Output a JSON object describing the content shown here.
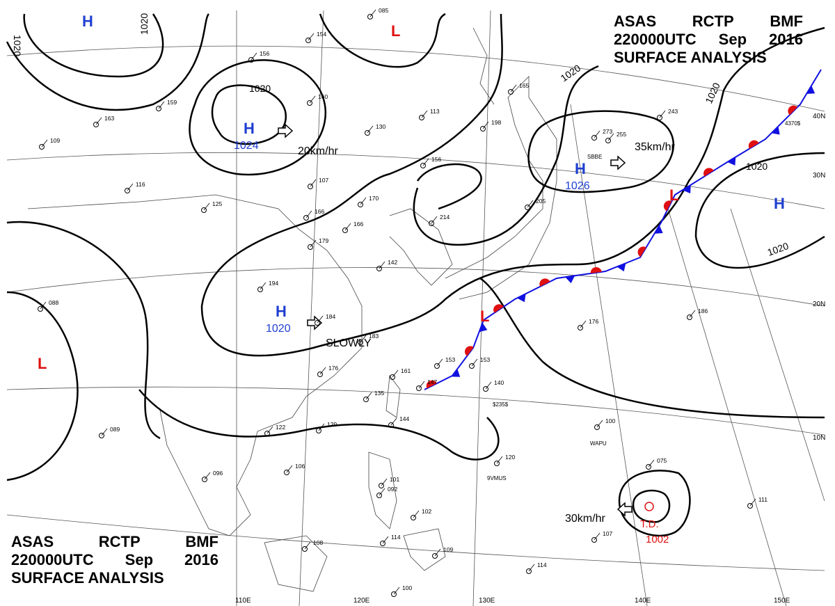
{
  "header_top": {
    "line1": [
      "ASAS",
      "RCTP",
      "BMF"
    ],
    "line2": [
      "220000UTC",
      "Sep",
      "2016"
    ],
    "line3": "SURFACE ANALYSIS"
  },
  "header_bottom": {
    "line1": [
      "ASAS",
      "RCTP",
      "BMF"
    ],
    "line2": [
      "220000UTC",
      "Sep",
      "2016"
    ],
    "line3": "SURFACE ANALYSIS"
  },
  "lat_labels": [
    "40N",
    "30N",
    "20N",
    "10N"
  ],
  "lon_labels": [
    "110E",
    "120E",
    "130E",
    "140E",
    "150E"
  ],
  "isobar_label": "1020",
  "pressure_centers": [
    {
      "type": "H",
      "value": "1024"
    },
    {
      "type": "H",
      "value": "1026"
    },
    {
      "type": "H",
      "value": "1020"
    },
    {
      "type": "H",
      "value": ""
    },
    {
      "type": "H",
      "value": ""
    },
    {
      "type": "L",
      "value": ""
    },
    {
      "type": "L",
      "value": ""
    },
    {
      "type": "L",
      "value": ""
    },
    {
      "type": "L",
      "value": ""
    }
  ],
  "movements": [
    "20km/hr",
    "35km/hr",
    "SLOWLY",
    "30km/hr"
  ],
  "tropical_depression": {
    "label": "T.D.",
    "pressure": "1002"
  },
  "colors": {
    "high": "#1f3fd0",
    "low": "#e01010",
    "cold_front": "#1010e0",
    "warm_front": "#e01010",
    "isobar": "#000000"
  },
  "stations": [
    "154",
    "156",
    "160",
    "130",
    "113",
    "159",
    "109",
    "163",
    "116",
    "125",
    "107",
    "166",
    "166",
    "170",
    "179",
    "194",
    "184",
    "183",
    "176",
    "161",
    "135",
    "144",
    "153",
    "140",
    "147",
    "153",
    "142",
    "129",
    "122",
    "106",
    "096",
    "101",
    "092",
    "102",
    "114",
    "109",
    "108",
    "107",
    "100",
    "114",
    "111",
    "100",
    "075",
    "120",
    "089",
    "088",
    "186",
    "176",
    "273",
    "255",
    "243",
    "205",
    "214",
    "165",
    "198",
    "156",
    "085"
  ],
  "station_codes": [
    "9VMUS",
    "WAPU",
    "$235$",
    "SBBE",
    "4370$"
  ]
}
